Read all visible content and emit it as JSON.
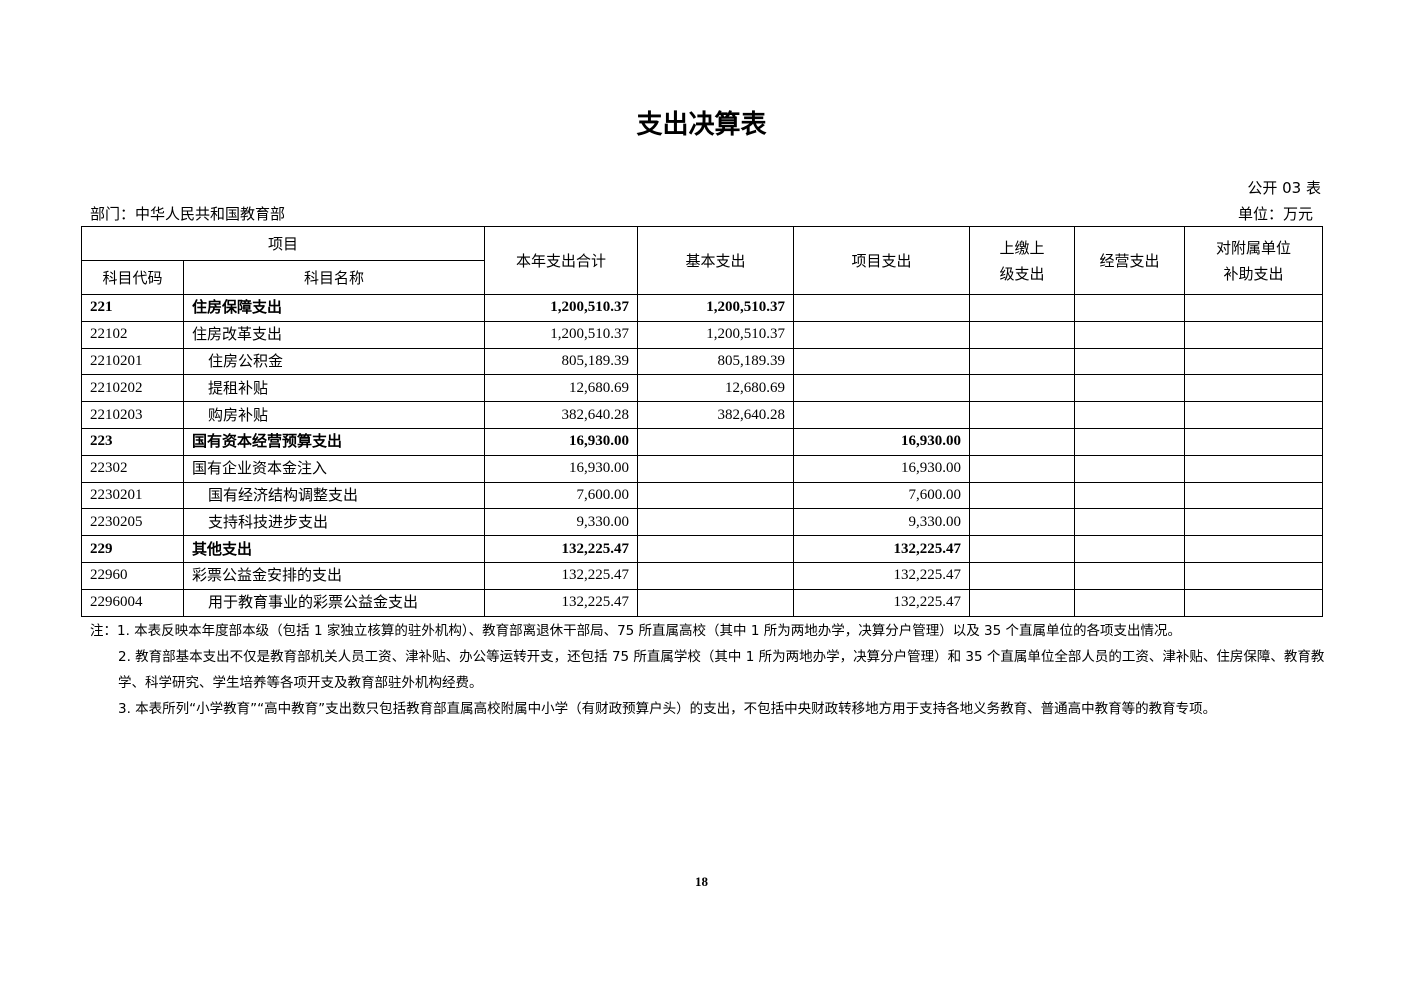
{
  "title": "支出决算表",
  "pub_no": "公开 03 表",
  "dept": "部门：中华人民共和国教育部",
  "unit": "单位：万元",
  "headers": {
    "item": "项目",
    "code": "科目代码",
    "name": "科目名称",
    "total": "本年支出合计",
    "basic": "基本支出",
    "project": "项目支出",
    "upper": "上缴上级支出",
    "business": "经营支出",
    "subsidy": "对附属单位补助支出"
  },
  "rows": [
    {
      "code": "221",
      "name": "住房保障支出",
      "total": "1,200,510.37",
      "basic": "1,200,510.37",
      "project": "",
      "level": 0,
      "bold": true
    },
    {
      "code": "22102",
      "name": "住房改革支出",
      "total": "1,200,510.37",
      "basic": "1,200,510.37",
      "project": "",
      "level": 0,
      "bold": false
    },
    {
      "code": "2210201",
      "name": "住房公积金",
      "total": "805,189.39",
      "basic": "805,189.39",
      "project": "",
      "level": 1,
      "bold": false
    },
    {
      "code": "2210202",
      "name": "提租补贴",
      "total": "12,680.69",
      "basic": "12,680.69",
      "project": "",
      "level": 1,
      "bold": false
    },
    {
      "code": "2210203",
      "name": "购房补贴",
      "total": "382,640.28",
      "basic": "382,640.28",
      "project": "",
      "level": 1,
      "bold": false
    },
    {
      "code": "223",
      "name": "国有资本经营预算支出",
      "total": "16,930.00",
      "basic": "",
      "project": "16,930.00",
      "level": 0,
      "bold": true
    },
    {
      "code": "22302",
      "name": "国有企业资本金注入",
      "total": "16,930.00",
      "basic": "",
      "project": "16,930.00",
      "level": 0,
      "bold": false
    },
    {
      "code": "2230201",
      "name": "国有经济结构调整支出",
      "total": "7,600.00",
      "basic": "",
      "project": "7,600.00",
      "level": 1,
      "bold": false
    },
    {
      "code": "2230205",
      "name": "支持科技进步支出",
      "total": "9,330.00",
      "basic": "",
      "project": "9,330.00",
      "level": 1,
      "bold": false
    },
    {
      "code": "229",
      "name": "其他支出",
      "total": "132,225.47",
      "basic": "",
      "project": "132,225.47",
      "level": 0,
      "bold": true
    },
    {
      "code": "22960",
      "name": "彩票公益金安排的支出",
      "total": "132,225.47",
      "basic": "",
      "project": "132,225.47",
      "level": 0,
      "bold": false
    },
    {
      "code": "2296004",
      "name": "用于教育事业的彩票公益金支出",
      "total": "132,225.47",
      "basic": "",
      "project": "132,225.47",
      "level": 1,
      "bold": false
    }
  ],
  "notes": [
    "注：1. 本表反映本年度部本级（包括 1 家独立核算的驻外机构）、教育部离退休干部局、75 所直属高校（其中 1 所为两地办学，决算分户管理）以及 35 个直属单位的各项支出情况。",
    "2. 教育部基本支出不仅是教育部机关人员工资、津补贴、办公等运转开支，还包括 75 所直属学校（其中 1 所为两地办学，决算分户管理）和 35 个直属单位全部人员的工资、津补贴、住房保障、教育教学、科学研究、学生培养等各项开支及教育部驻外机构经费。",
    "3. 本表所列“小学教育”“高中教育”支出数只包括教育部直属高校附属中小学（有财政预算户头）的支出，不包括中央财政转移地方用于支持各地义务教育、普通高中教育等的教育专项。"
  ],
  "page_number": "18"
}
